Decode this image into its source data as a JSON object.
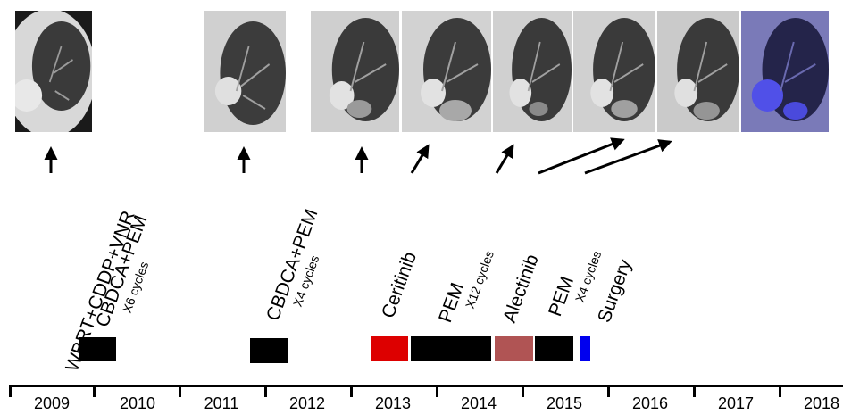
{
  "ct_scans": [
    {
      "tint": "gray"
    },
    {
      "tint": "gray"
    },
    {
      "tint": "gray"
    },
    {
      "tint": "gray"
    },
    {
      "tint": "gray"
    },
    {
      "tint": "gray"
    },
    {
      "tint": "gray"
    },
    {
      "tint": "blue-pet"
    }
  ],
  "treatments": [
    {
      "label": "WBRT+CDDP+VNR",
      "sub": ""
    },
    {
      "label": "CBDCA+PEM",
      "sub": "X6 cycles"
    },
    {
      "label": "CBDCA+PEM",
      "sub": "X4 cycles"
    },
    {
      "label": "Ceritinib",
      "sub": ""
    },
    {
      "label": "PEM",
      "sub": "X12 cycles"
    },
    {
      "label": "Alectinib",
      "sub": ""
    },
    {
      "label": "PEM",
      "sub": "X4 cycles"
    },
    {
      "label": "Surgery",
      "sub": ""
    }
  ],
  "bars": [
    {
      "name": "CBDCA+PEM X6",
      "color": "#000000"
    },
    {
      "name": "CBDCA+PEM X4",
      "color": "#000000"
    },
    {
      "name": "Ceritinib",
      "color": "#dd0000"
    },
    {
      "name": "PEM X12",
      "color": "#000000"
    },
    {
      "name": "Alectinib",
      "color": "#b05454"
    },
    {
      "name": "PEM X4",
      "color": "#000000"
    },
    {
      "name": "Surgery",
      "color": "#0000ee"
    }
  ],
  "years": [
    "2009",
    "2010",
    "2011",
    "2012",
    "2013",
    "2014",
    "2015",
    "2016",
    "2017",
    "2018"
  ]
}
